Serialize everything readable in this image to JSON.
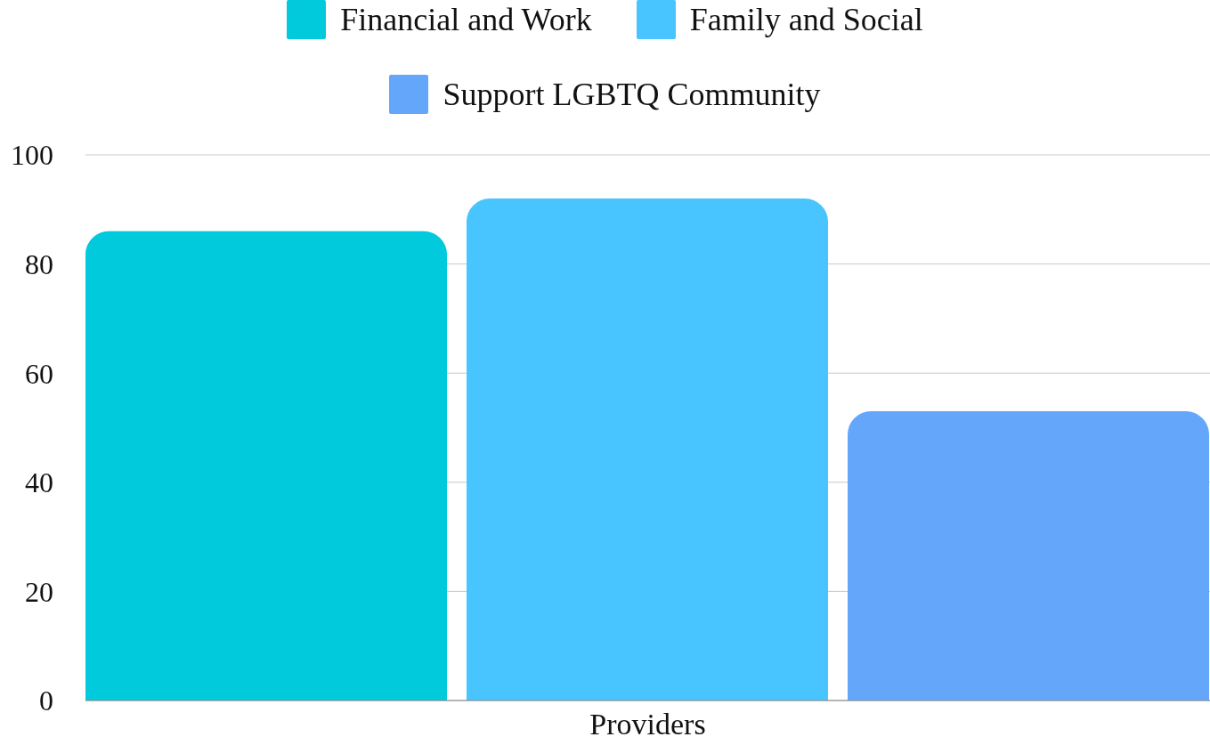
{
  "chart_data": {
    "type": "bar",
    "categories": [
      "Providers"
    ],
    "series": [
      {
        "name": "Financial and Work",
        "color": "#00cadb",
        "values": [
          86
        ]
      },
      {
        "name": "Family and Social",
        "color": "#48c4ff",
        "values": [
          92
        ]
      },
      {
        "name": "Support LGBTQ Community",
        "color": "#64a6f9",
        "values": [
          53
        ]
      }
    ],
    "ylim": [
      0,
      100
    ],
    "yticks": [
      0,
      20,
      40,
      60,
      80,
      100
    ],
    "grid": "y",
    "legend": "top"
  }
}
